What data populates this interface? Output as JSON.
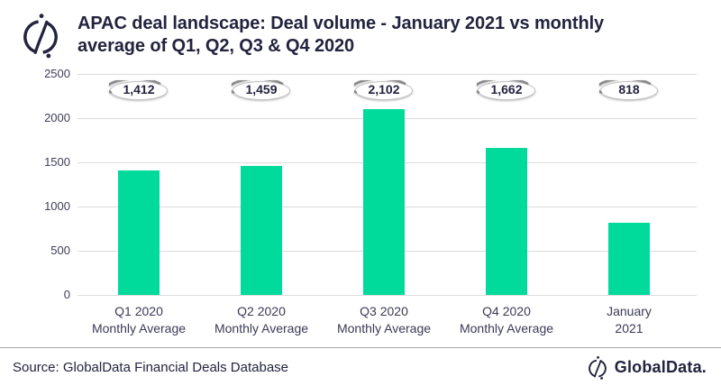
{
  "header": {
    "title": "APAC deal landscape: Deal volume - January 2021 vs monthly average of Q1, Q2, Q3 & Q4 2020"
  },
  "chart_data": {
    "type": "bar",
    "title": "APAC deal landscape: Deal volume - January 2021 vs monthly average of Q1, Q2, Q3 & Q4 2020",
    "categories": [
      "Q1 2020 Monthly Average",
      "Q2 2020 Monthly Average",
      "Q3 2020 Monthly Average",
      "Q4 2020 Monthly Average",
      "January 2021"
    ],
    "category_lines": [
      [
        "Q1 2020",
        "Monthly Average"
      ],
      [
        "Q2 2020",
        "Monthly Average"
      ],
      [
        "Q3 2020",
        "Monthly Average"
      ],
      [
        "Q4 2020",
        "Monthly Average"
      ],
      [
        "January",
        "2021"
      ]
    ],
    "values": [
      1412,
      1459,
      2102,
      1662,
      818
    ],
    "value_labels": [
      "1,412",
      "1,459",
      "2,102",
      "1,662",
      "818"
    ],
    "ylim": [
      0,
      2500
    ],
    "yticks": [
      0,
      500,
      1000,
      1500,
      2000,
      2500
    ],
    "xlabel": "",
    "ylabel": "",
    "grid": true,
    "legend": "none",
    "bar_color": "#00DB9C"
  },
  "footer": {
    "source": "Source: GlobalData Financial Deals Database",
    "brand": "GlobalData."
  },
  "colors": {
    "bar": "#00DB9C",
    "text_navy": "#23233F",
    "tick_text": "#3E3E58",
    "gridline": "#DBDBDB",
    "divider": "#A8A8A8"
  }
}
